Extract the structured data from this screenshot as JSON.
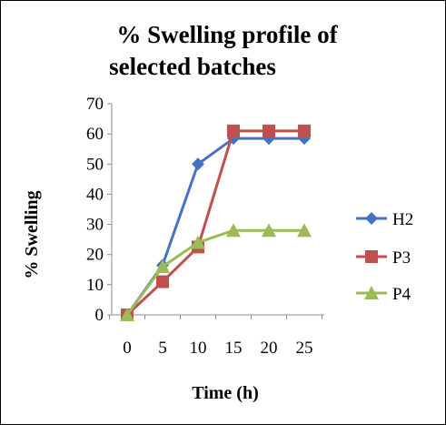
{
  "chart_data": {
    "type": "line",
    "title_lines": [
      "% Swelling profile of",
      "selected batches"
    ],
    "xlabel": "Time (h)",
    "ylabel": "% Swelling",
    "x": [
      0,
      5,
      10,
      15,
      20,
      25
    ],
    "xticks": [
      "0",
      "5",
      "10",
      "15",
      "20",
      "25"
    ],
    "yticks": [
      "0",
      "10",
      "20",
      "30",
      "40",
      "50",
      "60",
      "70"
    ],
    "ylim": [
      0,
      70
    ],
    "grid": false,
    "legend_position": "right",
    "series": [
      {
        "name": "H2",
        "values": [
          0,
          16.5,
          50,
          58.5,
          58.5,
          58.5
        ],
        "color": "#4472C4",
        "marker": "diamond"
      },
      {
        "name": "P3",
        "values": [
          0,
          11,
          22.5,
          61,
          61,
          61
        ],
        "color": "#C0504D",
        "marker": "square"
      },
      {
        "name": "P4",
        "values": [
          0,
          16,
          24,
          28,
          28,
          28
        ],
        "color": "#9BBB59",
        "marker": "triangle"
      }
    ]
  }
}
